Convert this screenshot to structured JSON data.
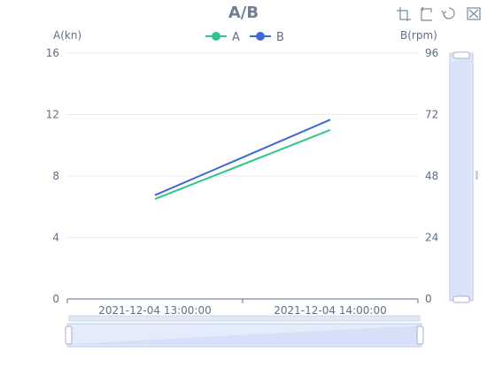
{
  "chart_data": {
    "type": "line",
    "title": "A/B",
    "x": [
      "2021-12-04 13:00:00",
      "2021-12-04 14:00:00"
    ],
    "series": [
      {
        "name": "A",
        "axis": "left",
        "values": [
          6.5,
          11.0
        ],
        "color": "#2fc48d"
      },
      {
        "name": "B",
        "axis": "right",
        "values": [
          40.5,
          70.0
        ],
        "color": "#4169d6"
      }
    ],
    "ylabel_left": "A(kn)",
    "ylabel_right": "B(rpm)",
    "ylim_left": [
      0,
      16
    ],
    "ylim_right": [
      0,
      96
    ],
    "yticks_left": [
      "0",
      "4",
      "8",
      "12",
      "16"
    ],
    "yticks_right": [
      "0",
      "24",
      "48",
      "72",
      "96"
    ],
    "legend_position": "top-center",
    "grid": true
  },
  "toolbox": {
    "icons": [
      "zoom-in-icon",
      "zoom-reset-icon",
      "restore-icon",
      "save-image-icon"
    ]
  },
  "colors": {
    "title": "#6e7f94",
    "axis_text": "#5f6f8a",
    "grid": "#e8ecf2",
    "slider_fill": "#d6e2fb",
    "slider_border": "#c5d3ea",
    "handle": "#ffffff"
  }
}
